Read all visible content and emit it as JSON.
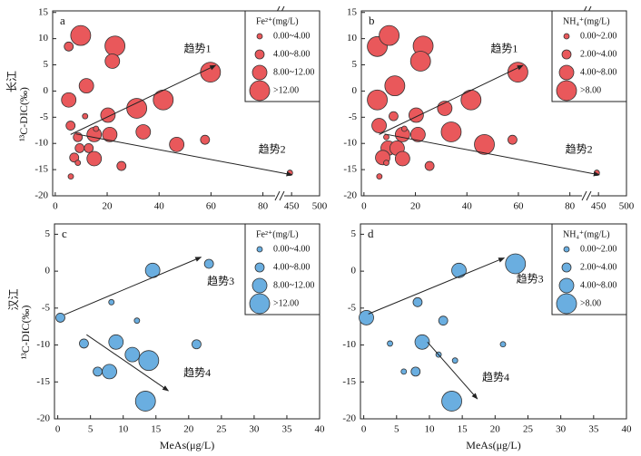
{
  "chart_data": [
    {
      "type": "bubble",
      "label": "a",
      "river": "长江",
      "ylabel": "¹³C-DIC(‰)",
      "color": "#e9585b",
      "xlim": [
        -1,
        500
      ],
      "xbreak": [
        84,
        440
      ],
      "ylim": [
        -20,
        15.3
      ],
      "xticks": [
        0,
        20,
        40,
        60,
        80,
        450,
        500
      ],
      "yticks": [
        -20,
        -15,
        -10,
        -5,
        0,
        5,
        10,
        15
      ],
      "x": [
        5.2,
        9.8,
        23,
        22,
        12,
        5.2,
        5.9,
        8.7,
        9.4,
        7.3,
        6,
        8.7,
        11.5,
        12.9,
        15,
        15,
        15.7,
        20.3,
        21,
        25.5,
        31.4,
        33.9,
        41.6,
        46.8,
        57.7,
        59.8,
        447
      ],
      "y": [
        8.5,
        10.6,
        8.6,
        5.7,
        1.0,
        -1.7,
        -6.6,
        -8.8,
        -10.9,
        -12.7,
        -16.3,
        -13.7,
        -4.8,
        -10.9,
        -8.3,
        -12.9,
        -7.2,
        -4.6,
        -8.3,
        -14.3,
        -3.3,
        -7.8,
        -1.7,
        -10.2,
        -9.3,
        3.6,
        -15.6
      ],
      "sizes": [
        6,
        14,
        14,
        10,
        10,
        10,
        6,
        6,
        6,
        5,
        1,
        2,
        2,
        6,
        9,
        9,
        2,
        9,
        10,
        6,
        14,
        9,
        14,
        10,
        6,
        14,
        2
      ],
      "size_legend": {
        "title": "Fe²⁺(mg/L)",
        "items": [
          {
            "value": 0,
            "label": "0.00~4.00"
          },
          {
            "value": 4,
            "label": "4.00~8.00"
          },
          {
            "value": 8,
            "label": "8.00~12.00"
          },
          {
            "value": 12,
            "label": ">12.00"
          }
        ]
      },
      "annotations": [
        {
          "text": "趋势1",
          "from": [
            5.9,
            -8.3
          ],
          "to": [
            61.8,
            4.9
          ],
          "at": [
            54.8,
            7.9
          ]
        },
        {
          "text": "趋势2",
          "from": [
            8,
            -8.2
          ],
          "to": [
            451,
            -16.0
          ],
          "at": [
            83.5,
            -11.3
          ]
        }
      ]
    },
    {
      "type": "bubble",
      "label": "b",
      "color": "#e9585b",
      "xlim": [
        -1,
        500
      ],
      "xbreak": [
        84,
        440
      ],
      "ylim": [
        -20,
        15.3
      ],
      "xticks": [
        0,
        20,
        40,
        60,
        80,
        450,
        500
      ],
      "yticks": [
        -20,
        -15,
        -10,
        -5,
        0,
        5,
        10,
        15
      ],
      "x": [
        5.2,
        9.8,
        23,
        22,
        12,
        5.2,
        5.9,
        8.7,
        9.4,
        7.3,
        6,
        8.7,
        11.5,
        12.9,
        15,
        15,
        15.7,
        20.3,
        21,
        25.5,
        31.4,
        33.9,
        41.6,
        46.8,
        57.7,
        59.8,
        447
      ],
      "y": [
        8.5,
        10.6,
        8.6,
        5.7,
        1.0,
        -1.7,
        -6.6,
        -8.8,
        -10.9,
        -12.7,
        -16.3,
        -13.7,
        -4.8,
        -10.9,
        -8.3,
        -12.9,
        -7.2,
        -4.6,
        -8.3,
        -14.3,
        -3.3,
        -7.8,
        -1.7,
        -10.2,
        -9.3,
        3.6,
        -15.6
      ],
      "sizes": [
        9,
        9,
        9,
        9,
        9,
        9,
        5,
        1,
        5,
        5,
        1,
        1,
        3,
        5,
        5,
        5,
        1,
        5,
        5,
        3,
        5,
        9,
        9,
        9,
        3,
        9,
        1
      ],
      "size_legend": {
        "title": "NH₄⁺(mg/L)",
        "items": [
          {
            "value": 0,
            "label": "0.00~2.00"
          },
          {
            "value": 2,
            "label": "2.00~4.00"
          },
          {
            "value": 4,
            "label": "4.00~8.00"
          },
          {
            "value": 8,
            "label": ">8.00"
          }
        ]
      },
      "annotations": [
        {
          "text": "趋势1",
          "from": [
            5.9,
            -8.3
          ],
          "to": [
            61.8,
            4.9
          ],
          "at": [
            54.5,
            7.9
          ]
        },
        {
          "text": "趋势2",
          "from": [
            8,
            -8.2
          ],
          "to": [
            451.6,
            -16.0
          ],
          "at": [
            83.5,
            -11.3
          ]
        }
      ]
    },
    {
      "type": "bubble",
      "label": "c",
      "river": "汉江",
      "ylabel": "¹³C-DIC(‰)",
      "xlabel": "MeAs(μg/L)",
      "color": "#6aaee0",
      "xlim": [
        -0.5,
        40
      ],
      "ylim": [
        -20,
        6.4
      ],
      "xticks": [
        0,
        5,
        10,
        15,
        20,
        25,
        30,
        35,
        40
      ],
      "yticks": [
        -20,
        -15,
        -10,
        -5,
        0,
        5
      ],
      "x": [
        0.4,
        14.5,
        23.1,
        8.2,
        12.1,
        4,
        8.9,
        11.4,
        13.9,
        21.2,
        6.1,
        7.9,
        13.4
      ],
      "y": [
        -6.3,
        0.1,
        1.0,
        -4.2,
        -6.7,
        -9.8,
        -9.6,
        -11.3,
        -12.1,
        -9.9,
        -13.6,
        -13.6,
        -17.6
      ],
      "sizes": [
        6,
        10,
        6,
        1,
        1,
        6,
        10,
        10,
        14,
        6,
        6,
        10,
        14
      ],
      "size_legend": {
        "title": "Fe²⁺(mg/L)",
        "items": [
          {
            "value": 0,
            "label": "0.00~4.00"
          },
          {
            "value": 4,
            "label": "4.00~8.00"
          },
          {
            "value": 8,
            "label": "8.00~12.00"
          },
          {
            "value": 12,
            "label": ">12.00"
          }
        ]
      },
      "annotations": [
        {
          "text": "趋势3",
          "from": [
            1,
            -5.9
          ],
          "to": [
            21.9,
            1.9
          ],
          "at": [
            24.9,
            -1.5
          ]
        },
        {
          "text": "趋势4",
          "from": [
            4.4,
            -8.6
          ],
          "to": [
            16.9,
            -16.2
          ],
          "at": [
            21.3,
            -13.9
          ]
        }
      ]
    },
    {
      "type": "bubble",
      "label": "d",
      "xlabel": "MeAs(μg/L)",
      "color": "#6aaee0",
      "xlim": [
        -0.5,
        40
      ],
      "ylim": [
        -20,
        6.4
      ],
      "xticks": [
        0,
        5,
        10,
        15,
        20,
        25,
        30,
        35,
        40
      ],
      "yticks": [
        -20,
        -15,
        -10,
        -5,
        0,
        5
      ],
      "x": [
        0.4,
        14.5,
        23.1,
        8.2,
        12.1,
        4,
        8.9,
        11.4,
        13.9,
        21.2,
        6.1,
        7.9,
        13.4
      ],
      "y": [
        -6.3,
        0.1,
        1.0,
        -4.2,
        -6.7,
        -9.8,
        -9.6,
        -11.3,
        -12.1,
        -9.9,
        -13.6,
        -13.6,
        -17.6
      ],
      "sizes": [
        5,
        5,
        9,
        3,
        3,
        1,
        5,
        1,
        1,
        1,
        1,
        3,
        9
      ],
      "size_legend": {
        "title": "NH₄⁺(mg/L)",
        "items": [
          {
            "value": 0,
            "label": "0.00~2.00"
          },
          {
            "value": 2,
            "label": "2.00~4.00"
          },
          {
            "value": 4,
            "label": "4.00~8.00"
          },
          {
            "value": 8,
            "label": ">8.00"
          }
        ]
      },
      "annotations": [
        {
          "text": "趋势3",
          "from": [
            0.7,
            -5.8
          ],
          "to": [
            21.4,
            1.8
          ],
          "at": [
            25.3,
            -1.2
          ]
        },
        {
          "text": "趋势4",
          "from": [
            9.7,
            -9.6
          ],
          "to": [
            17.3,
            -17.3
          ],
          "at": [
            20.1,
            -14.5
          ]
        }
      ]
    }
  ]
}
